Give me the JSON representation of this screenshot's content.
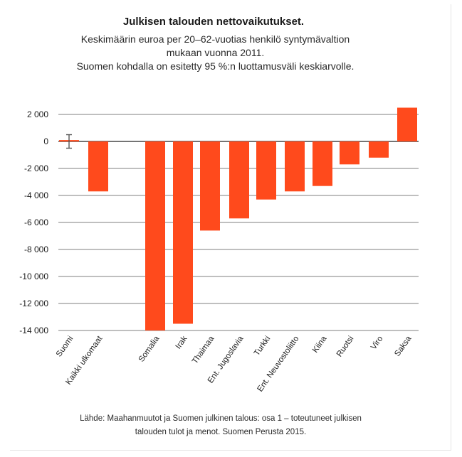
{
  "chart_data": {
    "type": "bar",
    "title": "Julkisen talouden nettovaikutukset.",
    "subtitle_lines": [
      "Keskimäärin euroa per 20–62-vuotias henkilö syntymävaltion",
      "mukaan vuonna 2011.",
      "Suomen kohdalla on esitetty 95 %:n luottamusväli keskiarvolle."
    ],
    "categories": [
      "Suomi",
      "Kaikki ulkomaat",
      "Somalia",
      "Irak",
      "Thaimaa",
      "Ent. Jugoslavia",
      "Turkki",
      "Ent. Neuvostoliitto",
      "Kiina",
      "Ruotsi",
      "Viro",
      "Saksa"
    ],
    "values": [
      100,
      -3700,
      -14000,
      -13500,
      -6600,
      -5700,
      -4300,
      -3700,
      -3300,
      -1700,
      -1200,
      2500
    ],
    "error_bar": {
      "category": "Suomi",
      "low": -500,
      "high": 500
    },
    "y_ticks": [
      2000,
      0,
      -2000,
      -4000,
      -6000,
      -8000,
      -10000,
      -12000,
      -14000
    ],
    "y_tick_labels": [
      "2 000",
      "0",
      "-2 000",
      "-4 000",
      "-6 000",
      "-8 000",
      "-10 000",
      "-12 000",
      "-14 000"
    ],
    "ylim": [
      -14000,
      2500
    ],
    "grid": true,
    "xlabel": "",
    "ylabel": "",
    "source_lines": [
      "Lähde: Maahanmuutot ja Suomen julkinen talous: osa 1 – toteutuneet julkisen",
      "talouden tulot ja menot. Suomen Perusta 2015."
    ],
    "colors": {
      "bar": "#ff4a1c",
      "grid": "#555555",
      "error_bar": "#555555"
    }
  }
}
